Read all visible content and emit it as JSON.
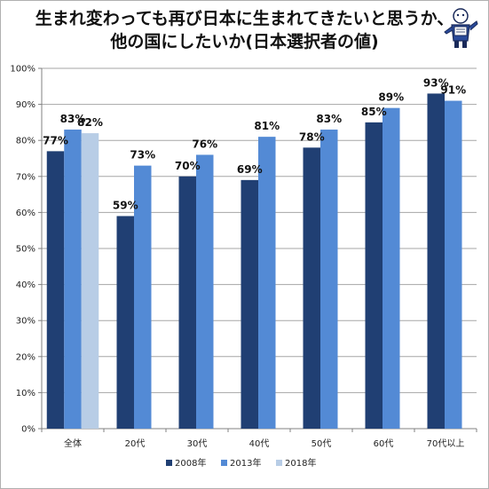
{
  "title_line1": "生まれ変わっても再び日本に生まれてきたいと思うか、",
  "title_line2": "他の国にしたいか(日本選択者の値)",
  "colors": {
    "2008年": "#203f73",
    "2013年": "#538ad5",
    "2018年": "#b8cde6"
  },
  "chart_data": {
    "type": "bar",
    "categories": [
      "全体",
      "20代",
      "30代",
      "40代",
      "50代",
      "60代",
      "70代以上"
    ],
    "series": [
      {
        "name": "2008年",
        "values": [
          77,
          59,
          70,
          69,
          78,
          85,
          93
        ]
      },
      {
        "name": "2013年",
        "values": [
          83,
          73,
          76,
          81,
          83,
          89,
          91
        ]
      },
      {
        "name": "2018年",
        "values": [
          82,
          null,
          null,
          null,
          null,
          null,
          null
        ]
      }
    ],
    "data_labels": [
      [
        "77%",
        "59%",
        "70%",
        "69%",
        "78%",
        "85%",
        "93%"
      ],
      [
        "83%",
        "73%",
        "76%",
        "81%",
        "83%",
        "89%",
        "91%"
      ],
      [
        "82%",
        "",
        "",
        "",
        "",
        "",
        ""
      ]
    ],
    "y_ticks": [
      "0%",
      "10%",
      "20%",
      "30%",
      "40%",
      "50%",
      "60%",
      "70%",
      "80%",
      "90%",
      "100%"
    ],
    "ylim": [
      0,
      100
    ],
    "grid": true,
    "legend_position": "bottom"
  }
}
